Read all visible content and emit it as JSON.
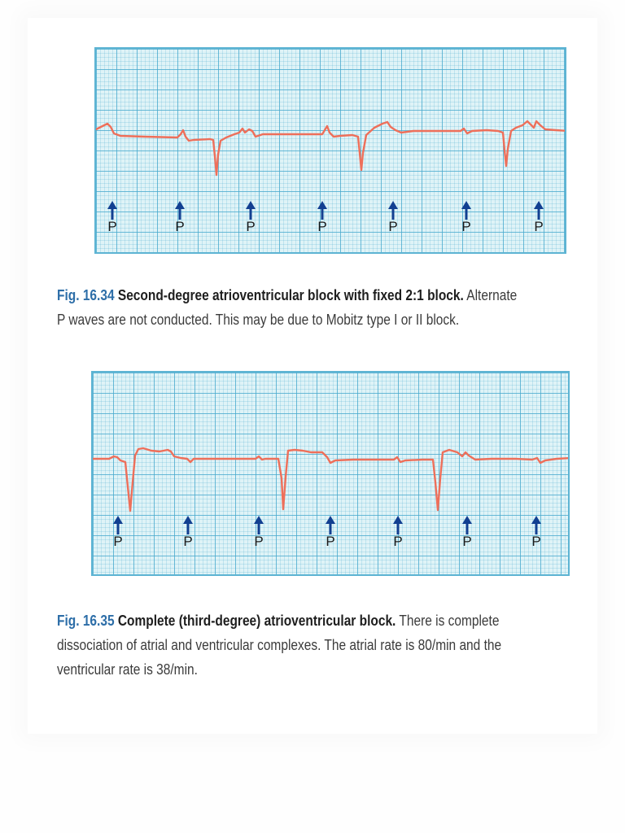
{
  "figures": [
    {
      "number": "Fig. 16.34",
      "title": "Second-degree atrioventricular block with fixed 2:1 block.",
      "text_line1": "Alternate",
      "text_line2": "P waves are not conducted. This may be due to Mobitz type I or II block.",
      "markers": [
        "P",
        "P",
        "P",
        "P",
        "P",
        "P",
        "P"
      ]
    },
    {
      "number": "Fig. 16.35",
      "title": "Complete (third-degree) atrioventricular block.",
      "text_line1": "There is complete",
      "text_line2": "dissociation of atrial and ventricular complexes. The atrial rate is 80/min and the",
      "text_line3": "ventricular rate is 38/min.",
      "markers": [
        "P",
        "P",
        "P",
        "P",
        "P",
        "P",
        "P"
      ]
    }
  ],
  "colors": {
    "trace": "#ee6f5a",
    "arrow": "#123f91",
    "grid": "#48aacd",
    "figure_number": "#2d6ea8"
  }
}
